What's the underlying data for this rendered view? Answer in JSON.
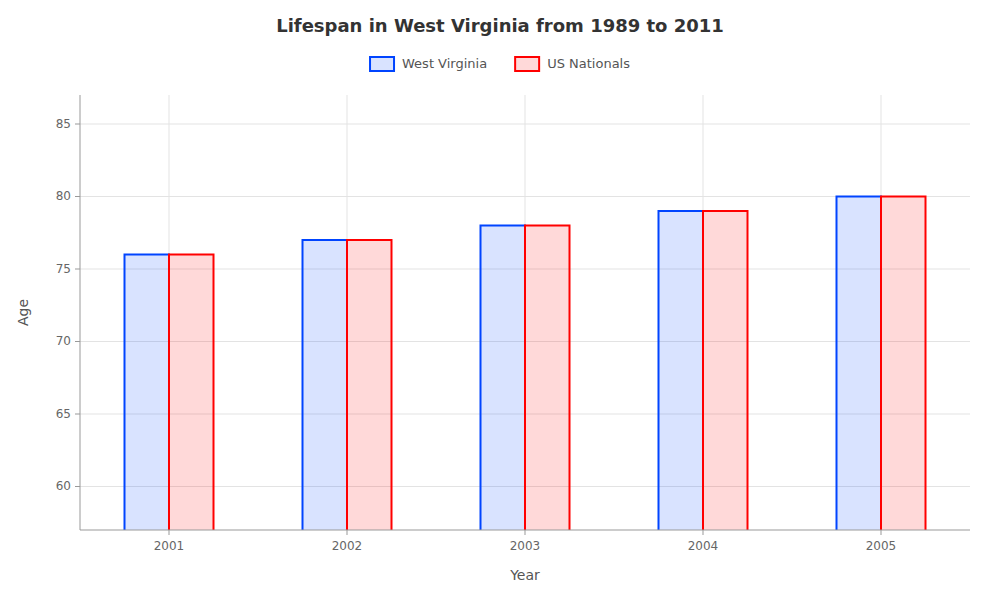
{
  "chart_data": {
    "type": "bar",
    "title": "Lifespan in West Virginia from 1989 to 2011",
    "xlabel": "Year",
    "ylabel": "Age",
    "categories": [
      "2001",
      "2002",
      "2003",
      "2004",
      "2005"
    ],
    "series": [
      {
        "name": "West Virginia",
        "color": "#0044ff",
        "values": [
          76,
          77,
          78,
          79,
          80
        ]
      },
      {
        "name": "US Nationals",
        "color": "#ff0000",
        "values": [
          76,
          77,
          78,
          79,
          80
        ]
      }
    ],
    "ylim": [
      57,
      87
    ],
    "yticks": [
      60,
      65,
      70,
      75,
      80,
      85
    ],
    "grid": true,
    "legend": "top"
  }
}
